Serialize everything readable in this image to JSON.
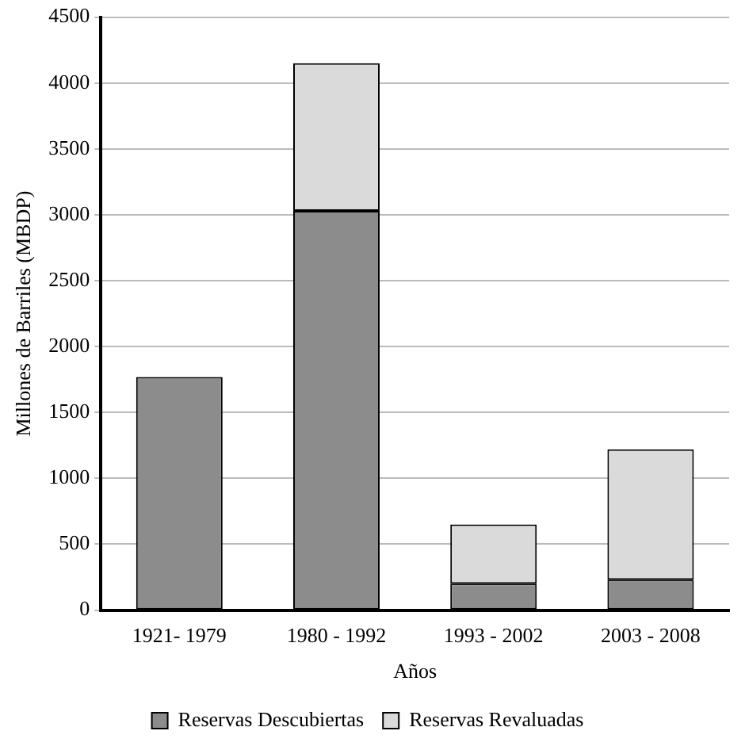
{
  "chart_data": {
    "type": "bar",
    "stacked": true,
    "xlabel": "Años",
    "ylabel": "Millones de Barriles (MBDP)",
    "categories": [
      "1921- 1979",
      "1980 - 1992",
      "1993 - 2002",
      "2003 - 2008"
    ],
    "series": [
      {
        "name": "Reservas Descubiertas",
        "color": "#8c8c8c",
        "values": [
          1770,
          3030,
          200,
          230
        ]
      },
      {
        "name": "Reservas Revaluadas",
        "color": "#dadada",
        "values": [
          0,
          1120,
          450,
          990
        ]
      }
    ],
    "ylim": [
      0,
      4500
    ],
    "yticks": [
      0,
      500,
      1000,
      1500,
      2000,
      2500,
      3000,
      3500,
      4000,
      4500
    ],
    "grid": "y",
    "legend": "bottom"
  }
}
